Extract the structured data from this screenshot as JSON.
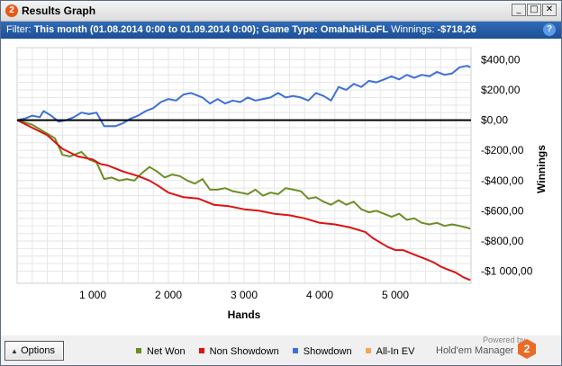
{
  "window": {
    "app_icon": "2",
    "title": "Results Graph",
    "minimize_glyph": "_",
    "maximize_glyph": "□",
    "close_glyph": "✕"
  },
  "filter": {
    "prefix": "Filter: ",
    "description": "This month (01.08.2014 0:00 to 01.09.2014 0:00); Game Type: OmahaHiLoFL",
    "winnings_label": " Winnings: ",
    "winnings_value": "-$718,26",
    "help_glyph": "?"
  },
  "chart_data": {
    "type": "line",
    "xlabel": "Hands",
    "ylabel": "Winnings",
    "xlim": [
      0,
      6000
    ],
    "ylim": [
      -1080,
      480
    ],
    "x_ticks": [
      1000,
      2000,
      3000,
      4000,
      5000
    ],
    "x_tick_labels": [
      "1 000",
      "2 000",
      "3 000",
      "4 000",
      "5 000"
    ],
    "y_ticks": [
      400,
      200,
      0,
      -200,
      -400,
      -600,
      -800,
      -1000
    ],
    "y_tick_labels": [
      "$400,00",
      "$200,00",
      "$0,00",
      "-$200,00",
      "-$400,00",
      "-$600,00",
      "-$800,00",
      "-$1 000,00"
    ],
    "grid": true,
    "series": [
      {
        "name": "Net Won",
        "color": "#6b8e23",
        "points": [
          [
            0,
            0
          ],
          [
            200,
            -30
          ],
          [
            400,
            -90
          ],
          [
            500,
            -120
          ],
          [
            600,
            -230
          ],
          [
            700,
            -240
          ],
          [
            850,
            -210
          ],
          [
            950,
            -260
          ],
          [
            1050,
            -280
          ],
          [
            1150,
            -390
          ],
          [
            1250,
            -380
          ],
          [
            1350,
            -400
          ],
          [
            1450,
            -390
          ],
          [
            1550,
            -400
          ],
          [
            1650,
            -350
          ],
          [
            1750,
            -310
          ],
          [
            1850,
            -340
          ],
          [
            1950,
            -380
          ],
          [
            2050,
            -360
          ],
          [
            2150,
            -370
          ],
          [
            2250,
            -400
          ],
          [
            2350,
            -420
          ],
          [
            2450,
            -390
          ],
          [
            2550,
            -460
          ],
          [
            2650,
            -460
          ],
          [
            2750,
            -450
          ],
          [
            2850,
            -470
          ],
          [
            2950,
            -480
          ],
          [
            3050,
            -490
          ],
          [
            3150,
            -460
          ],
          [
            3250,
            -500
          ],
          [
            3350,
            -480
          ],
          [
            3450,
            -490
          ],
          [
            3550,
            -450
          ],
          [
            3650,
            -460
          ],
          [
            3750,
            -470
          ],
          [
            3850,
            -520
          ],
          [
            3950,
            -510
          ],
          [
            4050,
            -540
          ],
          [
            4150,
            -560
          ],
          [
            4250,
            -530
          ],
          [
            4350,
            -560
          ],
          [
            4450,
            -540
          ],
          [
            4550,
            -590
          ],
          [
            4650,
            -610
          ],
          [
            4750,
            -600
          ],
          [
            4850,
            -620
          ],
          [
            4950,
            -640
          ],
          [
            5050,
            -620
          ],
          [
            5150,
            -660
          ],
          [
            5250,
            -650
          ],
          [
            5350,
            -680
          ],
          [
            5450,
            -690
          ],
          [
            5550,
            -680
          ],
          [
            5650,
            -700
          ],
          [
            5750,
            -690
          ],
          [
            5850,
            -700
          ],
          [
            5990,
            -718
          ]
        ]
      },
      {
        "name": "Non Showdown",
        "color": "#dd1111",
        "points": [
          [
            0,
            0
          ],
          [
            200,
            -50
          ],
          [
            400,
            -100
          ],
          [
            600,
            -190
          ],
          [
            800,
            -240
          ],
          [
            1000,
            -260
          ],
          [
            1100,
            -290
          ],
          [
            1200,
            -300
          ],
          [
            1400,
            -340
          ],
          [
            1600,
            -370
          ],
          [
            1750,
            -400
          ],
          [
            1850,
            -430
          ],
          [
            2000,
            -480
          ],
          [
            2200,
            -510
          ],
          [
            2400,
            -520
          ],
          [
            2500,
            -540
          ],
          [
            2600,
            -560
          ],
          [
            2800,
            -570
          ],
          [
            3000,
            -590
          ],
          [
            3200,
            -600
          ],
          [
            3400,
            -620
          ],
          [
            3600,
            -630
          ],
          [
            3800,
            -650
          ],
          [
            4000,
            -680
          ],
          [
            4200,
            -690
          ],
          [
            4400,
            -710
          ],
          [
            4600,
            -740
          ],
          [
            4700,
            -780
          ],
          [
            4800,
            -810
          ],
          [
            4900,
            -840
          ],
          [
            5000,
            -860
          ],
          [
            5100,
            -860
          ],
          [
            5200,
            -880
          ],
          [
            5300,
            -900
          ],
          [
            5400,
            -920
          ],
          [
            5500,
            -940
          ],
          [
            5600,
            -970
          ],
          [
            5700,
            -990
          ],
          [
            5800,
            -1010
          ],
          [
            5900,
            -1040
          ],
          [
            5990,
            -1060
          ]
        ]
      },
      {
        "name": "Showdown",
        "color": "#3f6fd8",
        "points": [
          [
            0,
            0
          ],
          [
            100,
            10
          ],
          [
            200,
            30
          ],
          [
            300,
            20
          ],
          [
            350,
            60
          ],
          [
            450,
            30
          ],
          [
            550,
            -10
          ],
          [
            650,
            0
          ],
          [
            750,
            20
          ],
          [
            850,
            50
          ],
          [
            950,
            40
          ],
          [
            1050,
            50
          ],
          [
            1150,
            -40
          ],
          [
            1300,
            -40
          ],
          [
            1400,
            -20
          ],
          [
            1500,
            10
          ],
          [
            1600,
            30
          ],
          [
            1700,
            60
          ],
          [
            1800,
            80
          ],
          [
            1900,
            120
          ],
          [
            2000,
            140
          ],
          [
            2100,
            130
          ],
          [
            2200,
            170
          ],
          [
            2300,
            180
          ],
          [
            2450,
            150
          ],
          [
            2550,
            110
          ],
          [
            2650,
            140
          ],
          [
            2750,
            110
          ],
          [
            2850,
            130
          ],
          [
            2950,
            120
          ],
          [
            3050,
            150
          ],
          [
            3150,
            130
          ],
          [
            3250,
            140
          ],
          [
            3350,
            150
          ],
          [
            3450,
            180
          ],
          [
            3550,
            150
          ],
          [
            3650,
            160
          ],
          [
            3750,
            150
          ],
          [
            3850,
            130
          ],
          [
            3950,
            180
          ],
          [
            4050,
            160
          ],
          [
            4150,
            130
          ],
          [
            4250,
            220
          ],
          [
            4350,
            200
          ],
          [
            4450,
            240
          ],
          [
            4550,
            220
          ],
          [
            4650,
            260
          ],
          [
            4750,
            250
          ],
          [
            4850,
            270
          ],
          [
            4950,
            290
          ],
          [
            5050,
            270
          ],
          [
            5150,
            300
          ],
          [
            5250,
            280
          ],
          [
            5350,
            300
          ],
          [
            5450,
            290
          ],
          [
            5550,
            320
          ],
          [
            5650,
            300
          ],
          [
            5750,
            310
          ],
          [
            5850,
            350
          ],
          [
            5950,
            360
          ],
          [
            5990,
            350
          ]
        ]
      },
      {
        "name": "All-In EV",
        "color": "#f4a65a",
        "points": []
      }
    ]
  },
  "legend": {
    "items": [
      {
        "label": "Net Won",
        "color": "#6b8e23"
      },
      {
        "label": "Non Showdown",
        "color": "#dd1111"
      },
      {
        "label": "Showdown",
        "color": "#3f6fd8"
      },
      {
        "label": "All-In EV",
        "color": "#f4a65a"
      }
    ]
  },
  "bottom": {
    "options_label": "Options",
    "powered_by": "Powered by",
    "product": "Hold'em Manager",
    "logo_glyph": "2"
  }
}
